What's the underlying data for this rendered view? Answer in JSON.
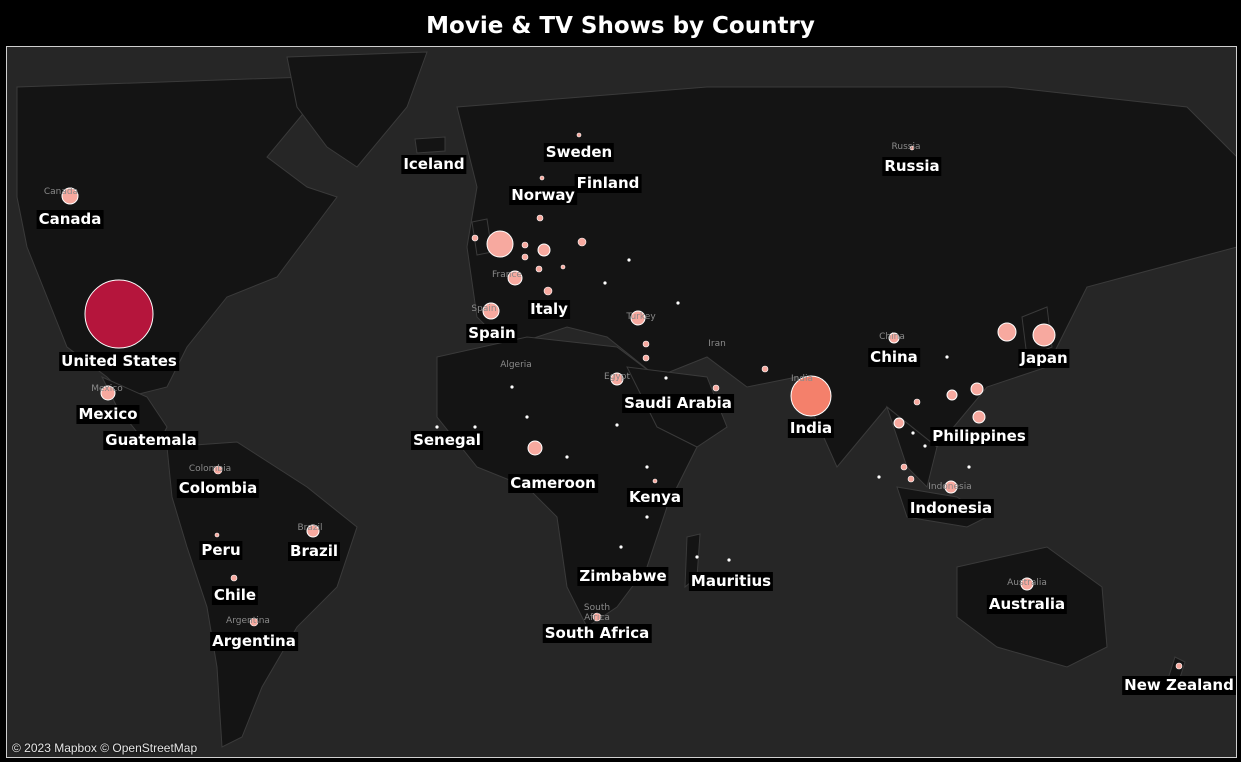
{
  "title": "Movie & TV Shows by Country",
  "attribution": "© 2023 Mapbox © OpenStreetMap",
  "colors": {
    "background": "#000000",
    "water": "#262626",
    "land": "#141414",
    "small_marker": "#f7a99f",
    "mid_marker": "#f4806b",
    "top_marker": "#b5153c"
  },
  "country_labels": [
    "Iceland",
    "Sweden",
    "Norway",
    "Finland",
    "Russia",
    "Canada",
    "Italy",
    "Spain",
    "United States",
    "China",
    "Japan",
    "Mexico",
    "Saudi Arabia",
    "India",
    "Guatemala",
    "Senegal",
    "Philippines",
    "Colombia",
    "Cameroon",
    "Kenya",
    "Indonesia",
    "Peru",
    "Brazil",
    "Zimbabwe",
    "Mauritius",
    "Chile",
    "Australia",
    "South Africa",
    "Argentina",
    "New Zealand"
  ],
  "basemap_labels": [
    "Canada",
    "Mexico",
    "Colombia",
    "Brazil",
    "Argentina",
    "Russia",
    "China",
    "Iran",
    "Algeria",
    "India",
    "Indonesia",
    "Australia",
    "South",
    "Africa",
    "France",
    "Spain",
    "Turkey",
    "Egypt"
  ]
}
